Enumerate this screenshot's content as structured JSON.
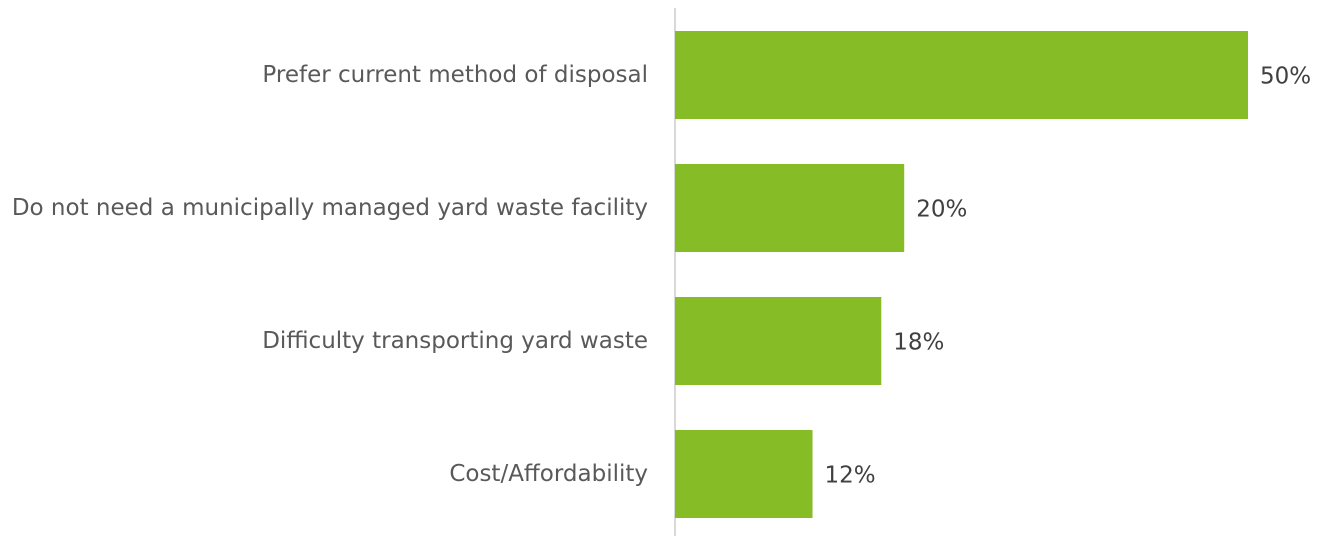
{
  "chart_data": {
    "type": "hbar",
    "categories": [
      "Prefer current method of disposal",
      "Do not need a municipally managed yard waste facility",
      "Difficulty transporting yard waste",
      "Cost/Affordability"
    ],
    "values": [
      50,
      20,
      18,
      12
    ],
    "value_labels": [
      "50%",
      "20%",
      "18%",
      "12%"
    ],
    "color": "#86bc25"
  }
}
